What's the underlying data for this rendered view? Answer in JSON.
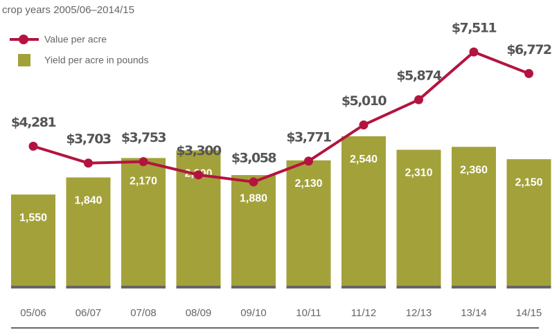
{
  "chart_data": {
    "type": "bar-line",
    "subtitle": "crop years 2005/06–2014/15",
    "categories": [
      "05/06",
      "06/07",
      "07/08",
      "08/09",
      "09/10",
      "10/11",
      "11/12",
      "12/13",
      "13/14",
      "14/15"
    ],
    "series": [
      {
        "name": "Yield per acre in pounds",
        "type": "bar",
        "color": "#a3a13a",
        "axis": "y",
        "values": [
          1550,
          1840,
          2170,
          2300,
          1880,
          2130,
          2540,
          2310,
          2360,
          2150
        ],
        "value_labels": [
          "1,550",
          "1,840",
          "2,170",
          "2,300",
          "1,880",
          "2,130",
          "2,540",
          "2,310",
          "2,360",
          "2,150"
        ]
      },
      {
        "name": "Value per acre",
        "type": "line",
        "color": "#b3143f",
        "axis": "y2",
        "values": [
          4281,
          3703,
          3753,
          3300,
          3058,
          3771,
          5010,
          5874,
          7511,
          6772
        ],
        "value_labels": [
          "$4,281",
          "$3,703",
          "$3,753",
          "$3,300",
          "$3,058",
          "$3,771",
          "$5,010",
          "$5,874",
          "$7,511",
          "$6,772"
        ]
      }
    ],
    "ylim": [
      0,
      4150
    ],
    "y2lim": [
      -500,
      7870
    ],
    "legend": "top-left"
  }
}
